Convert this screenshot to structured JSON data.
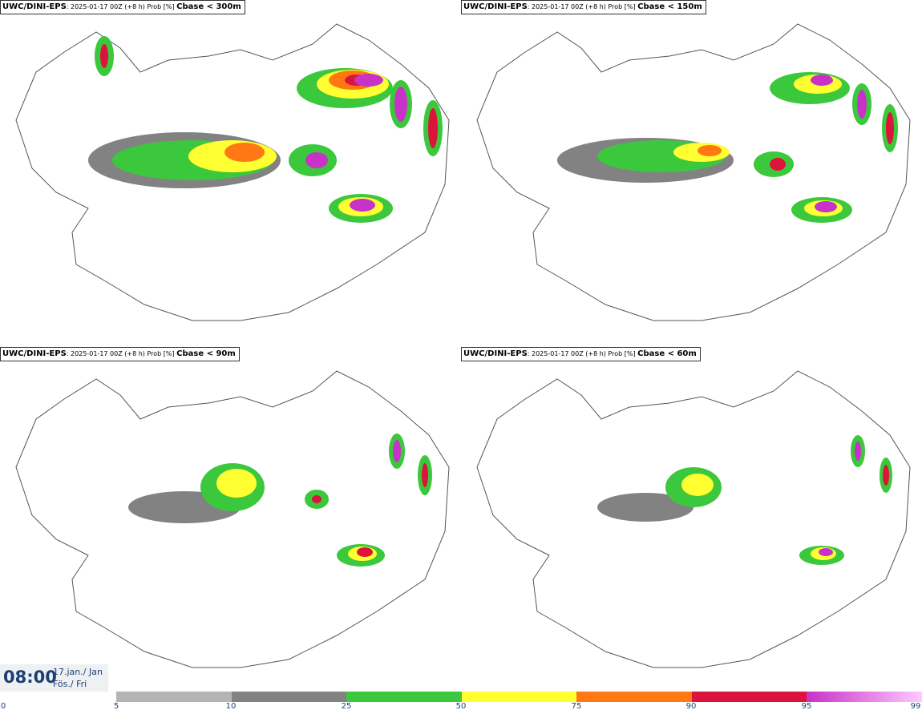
{
  "panels": [
    {
      "model": "UWC/DINI-EPS",
      "meta": ": 2025-01-17 00Z (+8 h) Prob [%] ",
      "variable": "Cbase < 300m"
    },
    {
      "model": "UWC/DINI-EPS",
      "meta": ": 2025-01-17 00Z (+8 h) Prob [%] ",
      "variable": "Cbase < 150m"
    },
    {
      "model": "UWC/DINI-EPS",
      "meta": ": 2025-01-17 00Z (+8 h) Prob [%] ",
      "variable": "Cbase < 90m"
    },
    {
      "model": "UWC/DINI-EPS",
      "meta": ": 2025-01-17 00Z (+8 h) Prob [%] ",
      "variable": "Cbase < 60m"
    }
  ],
  "time_label": {
    "time": "08:00",
    "date_line1": "17.jan./ Jan",
    "date_line2": "Fös./ Fri"
  },
  "legend": {
    "ticks": [
      "0",
      "5",
      "10",
      "25",
      "50",
      "75",
      "90",
      "95",
      "99"
    ],
    "colors": [
      "#ffffff",
      "#b4b4b4",
      "#828282",
      "#3cc83c",
      "#ffff32",
      "#ff7814",
      "#dc143c",
      "#c832c8",
      "#ffc8ff"
    ]
  }
}
